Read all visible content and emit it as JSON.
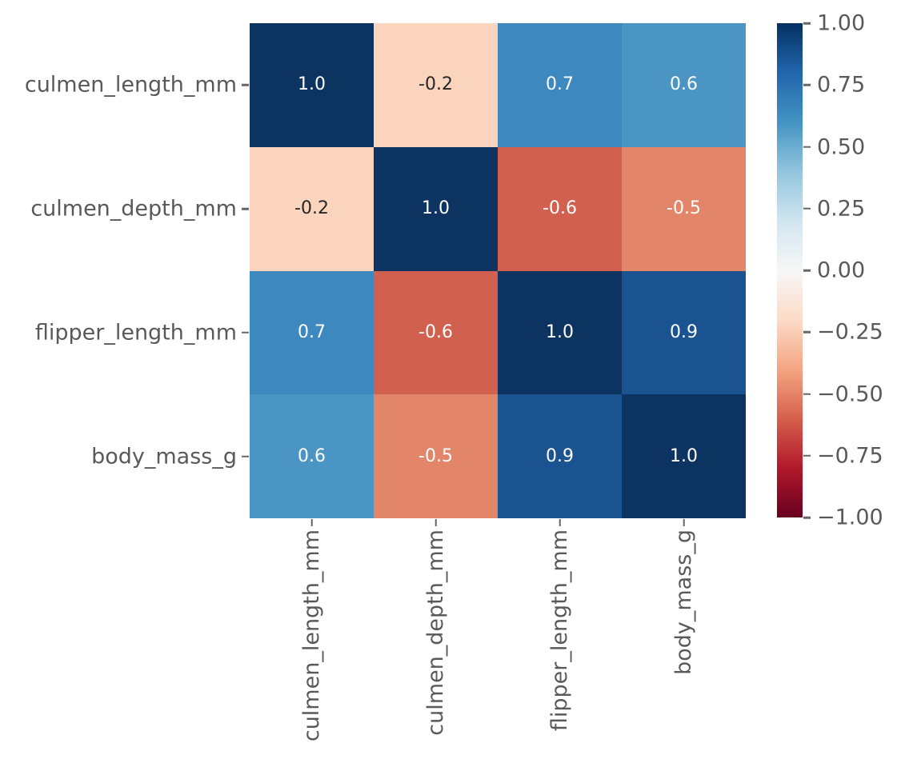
{
  "style": {
    "background": "#ffffff",
    "label_color": "#595959",
    "tick_color": "#666666",
    "annotation_light": "#ffffff",
    "annotation_dark": "#262626"
  },
  "chart_data": {
    "type": "heatmap",
    "title": "",
    "xlabel": "",
    "ylabel": "",
    "categories": [
      "culmen_length_mm",
      "culmen_depth_mm",
      "flipper_length_mm",
      "body_mass_g"
    ],
    "matrix": [
      [
        1.0,
        -0.2,
        0.7,
        0.6
      ],
      [
        -0.2,
        1.0,
        -0.6,
        -0.5
      ],
      [
        0.7,
        -0.6,
        1.0,
        0.9
      ],
      [
        0.6,
        -0.5,
        0.9,
        1.0
      ]
    ],
    "cell_labels": [
      [
        "1.0",
        "-0.2",
        "0.7",
        "0.6"
      ],
      [
        "-0.2",
        "1.0",
        "-0.6",
        "-0.5"
      ],
      [
        "0.7",
        "-0.6",
        "1.0",
        "0.9"
      ],
      [
        "0.6",
        "-0.5",
        "0.9",
        "1.0"
      ]
    ],
    "cell_colors": [
      [
        "#0d3360",
        "#fbd4be",
        "#3d88be",
        "#4b95c5"
      ],
      [
        "#fbd4be",
        "#0d3360",
        "#d2604e",
        "#e28568"
      ],
      [
        "#3d88be",
        "#d2604e",
        "#0d3360",
        "#1a5390"
      ],
      [
        "#4b95c5",
        "#e28568",
        "#1a5390",
        "#0d3360"
      ]
    ],
    "cell_text_colors": [
      [
        "#ffffff",
        "#262626",
        "#ffffff",
        "#ffffff"
      ],
      [
        "#262626",
        "#ffffff",
        "#ffffff",
        "#ffffff"
      ],
      [
        "#ffffff",
        "#ffffff",
        "#ffffff",
        "#ffffff"
      ],
      [
        "#ffffff",
        "#ffffff",
        "#ffffff",
        "#ffffff"
      ]
    ],
    "colormap": "RdBu",
    "vmin": -1,
    "vmax": 1,
    "grid": false,
    "legend_position": "none",
    "colorbar": {
      "position": "right",
      "tick_labels": [
        "1.00",
        "0.75",
        "0.50",
        "0.25",
        "0.00",
        "−0.25",
        "−0.50",
        "−0.75",
        "−1.00"
      ],
      "gradient_top_to_bottom": [
        "#053061",
        "#2166ac",
        "#4393c3",
        "#92c5de",
        "#d1e5f0",
        "#f7f7f7",
        "#fddbc7",
        "#f4a582",
        "#d6604d",
        "#b2182b",
        "#67001f"
      ]
    }
  }
}
